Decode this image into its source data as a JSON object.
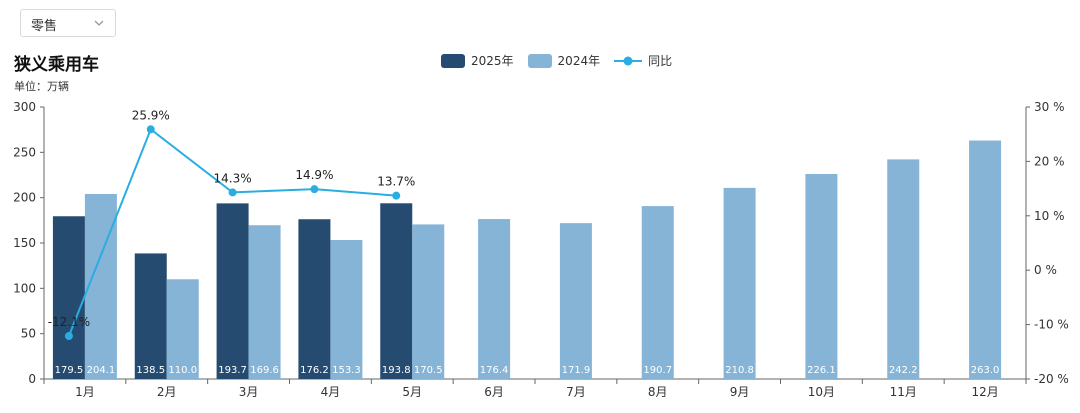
{
  "dropdown": {
    "selected": "零售"
  },
  "header": {
    "title": "狭义乘用车",
    "unit": "单位：万辆"
  },
  "colors": {
    "y2025": "#264b70",
    "y2024": "#85b4d6",
    "yoy": "#29ade2"
  },
  "chart_data": {
    "type": "bar",
    "categories": [
      "1月",
      "2月",
      "3月",
      "4月",
      "5月",
      "6月",
      "7月",
      "8月",
      "9月",
      "10月",
      "11月",
      "12月"
    ],
    "series": [
      {
        "name": "2025年",
        "values": [
          179.5,
          138.5,
          193.7,
          176.2,
          193.8,
          null,
          null,
          null,
          null,
          null,
          null,
          null
        ]
      },
      {
        "name": "2024年",
        "values": [
          204.1,
          110.0,
          169.6,
          153.3,
          170.5,
          176.4,
          171.9,
          190.7,
          210.8,
          226.1,
          242.2,
          263.0
        ]
      }
    ],
    "line": {
      "name": "同比",
      "values": [
        -12.1,
        25.9,
        14.3,
        14.9,
        13.7,
        null,
        null,
        null,
        null,
        null,
        null,
        null
      ]
    },
    "ylim_left": [
      0,
      300
    ],
    "yticks_left": [
      0,
      50,
      100,
      150,
      200,
      250,
      300
    ],
    "ylim_right": [
      -20,
      30
    ],
    "yticks_right": [
      -20,
      -10,
      0,
      10,
      20,
      30
    ],
    "legend_position": "top-center"
  }
}
